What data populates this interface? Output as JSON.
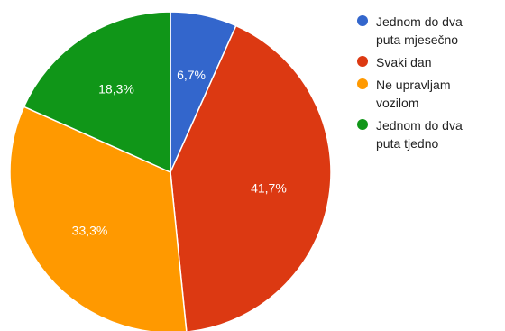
{
  "chart_data": {
    "type": "pie",
    "slices": [
      {
        "label": "Jednom do dva puta mjesečno",
        "legend_text": "Jednom do dva\nputa mjesečno",
        "value": 6.7,
        "value_label": "6,7%",
        "color": "#3366cc"
      },
      {
        "label": "Svaki dan",
        "legend_text": "Svaki dan",
        "value": 41.7,
        "value_label": "41,7%",
        "color": "#dc3912"
      },
      {
        "label": "Ne upravljam vozilom",
        "legend_text": "Ne upravljam\nvozilom",
        "value": 33.3,
        "value_label": "33,3%",
        "color": "#ff9900"
      },
      {
        "label": "Jednom do dva puta tjedno",
        "legend_text": "Jednom do dva\nputa tjedno",
        "value": 18.3,
        "value_label": "18,3%",
        "color": "#109618"
      }
    ],
    "legend_position": "right",
    "start_angle": "top, clockwise"
  }
}
